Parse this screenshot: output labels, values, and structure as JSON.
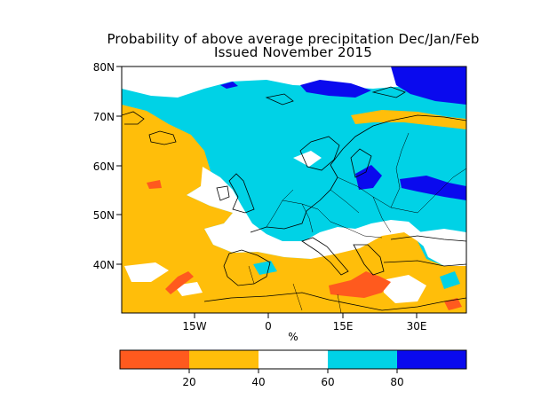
{
  "header": {
    "title_line1": "Probability of above average precipitation Dec/Jan/Feb",
    "title_line2": "Issued November 2015"
  },
  "map": {
    "lat_labels": [
      "80N",
      "70N",
      "60N",
      "50N",
      "40N"
    ],
    "lon_labels": [
      "15W",
      "0",
      "15E",
      "30E"
    ],
    "unit_label": "%"
  },
  "legend": {
    "tick_labels": [
      "20",
      "40",
      "60",
      "80"
    ],
    "bins": [
      {
        "range": "0-20",
        "color": "#ff5a1e"
      },
      {
        "range": "20-40",
        "color": "#ffbe0a"
      },
      {
        "range": "40-60",
        "color": "#ffffff"
      },
      {
        "range": "60-80",
        "color": "#00d2e6"
      },
      {
        "range": "80-100",
        "color": "#0a0aee"
      }
    ]
  }
}
